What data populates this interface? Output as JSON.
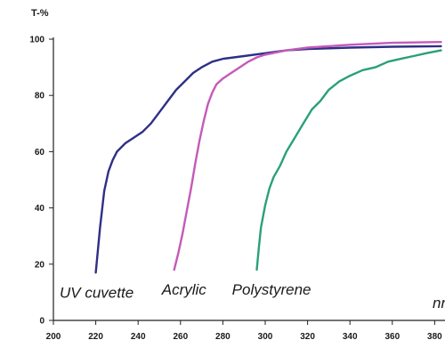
{
  "chart_data": {
    "type": "line",
    "ylabel": "T-%",
    "xlabel": "nm",
    "xlim": [
      200,
      383
    ],
    "ylim": [
      0,
      100
    ],
    "x_ticks": [
      200,
      220,
      240,
      260,
      280,
      300,
      320,
      340,
      360,
      380
    ],
    "y_ticks": [
      0,
      20,
      40,
      60,
      80,
      100
    ],
    "grid": false,
    "series": [
      {
        "name": "UV cuvette",
        "color": "#2e2f86",
        "points": [
          [
            220,
            17
          ],
          [
            222,
            33
          ],
          [
            224,
            46
          ],
          [
            226,
            53
          ],
          [
            228,
            57
          ],
          [
            230,
            60
          ],
          [
            234,
            63
          ],
          [
            238,
            65
          ],
          [
            242,
            67
          ],
          [
            246,
            70
          ],
          [
            250,
            74
          ],
          [
            254,
            78
          ],
          [
            258,
            82
          ],
          [
            262,
            85
          ],
          [
            266,
            88
          ],
          [
            270,
            90
          ],
          [
            275,
            92
          ],
          [
            280,
            93
          ],
          [
            290,
            94
          ],
          [
            300,
            95
          ],
          [
            310,
            96
          ],
          [
            320,
            96.5
          ],
          [
            340,
            97
          ],
          [
            360,
            97.3
          ],
          [
            383,
            97.5
          ]
        ]
      },
      {
        "name": "Acrylic",
        "color": "#c45ab9",
        "points": [
          [
            257,
            18
          ],
          [
            259,
            24
          ],
          [
            261,
            31
          ],
          [
            263,
            39
          ],
          [
            265,
            47
          ],
          [
            267,
            56
          ],
          [
            269,
            64
          ],
          [
            271,
            71
          ],
          [
            273,
            77
          ],
          [
            275,
            81
          ],
          [
            277,
            84
          ],
          [
            280,
            86
          ],
          [
            284,
            88
          ],
          [
            288,
            90
          ],
          [
            292,
            92
          ],
          [
            296,
            93.5
          ],
          [
            300,
            94.5
          ],
          [
            310,
            96
          ],
          [
            320,
            97
          ],
          [
            340,
            98
          ],
          [
            360,
            98.7
          ],
          [
            383,
            99
          ]
        ]
      },
      {
        "name": "Polystyrene",
        "color": "#2aa07a",
        "points": [
          [
            296,
            18
          ],
          [
            297,
            26
          ],
          [
            298,
            33
          ],
          [
            300,
            41
          ],
          [
            302,
            47
          ],
          [
            304,
            51
          ],
          [
            307,
            55
          ],
          [
            310,
            60
          ],
          [
            314,
            65
          ],
          [
            318,
            70
          ],
          [
            322,
            75
          ],
          [
            326,
            78
          ],
          [
            330,
            82
          ],
          [
            335,
            85
          ],
          [
            340,
            87
          ],
          [
            346,
            89
          ],
          [
            352,
            90
          ],
          [
            358,
            92
          ],
          [
            364,
            93
          ],
          [
            370,
            94
          ],
          [
            376,
            95
          ],
          [
            383,
            96
          ]
        ]
      }
    ]
  }
}
